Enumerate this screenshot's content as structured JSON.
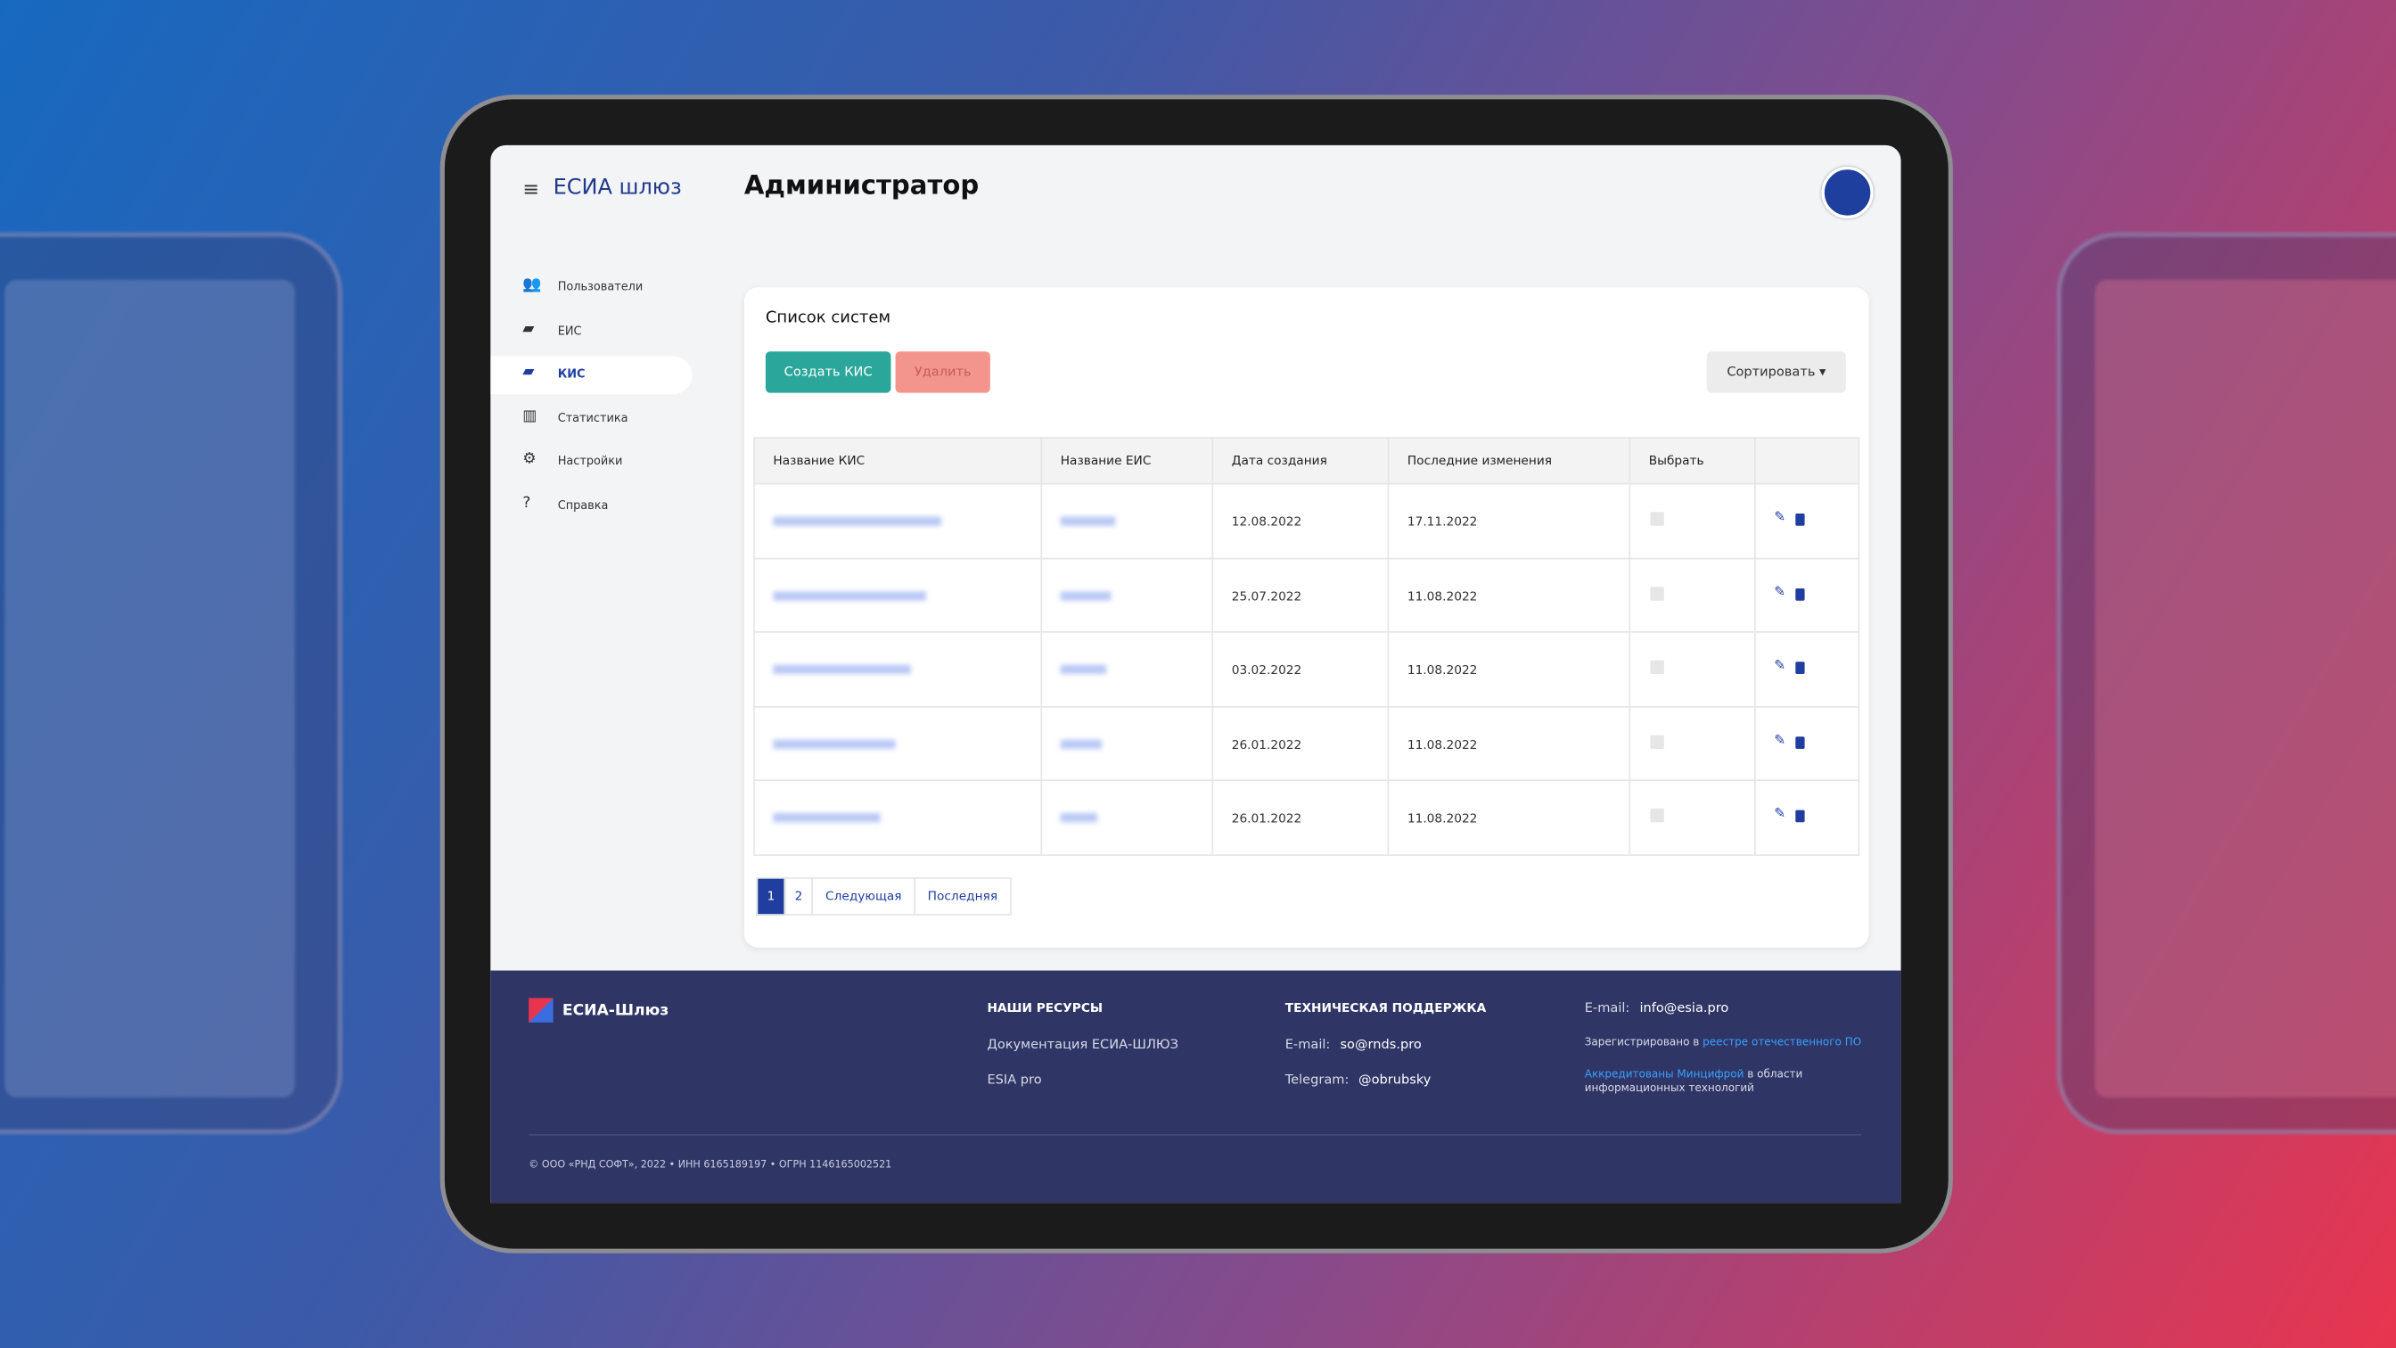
{
  "header": {
    "brand": "ЕСИА шлюз",
    "title": "Администратор"
  },
  "sidebar": {
    "items": [
      {
        "label": "Пользователи"
      },
      {
        "label": "ЕИС"
      },
      {
        "label": "КИС",
        "active": true
      },
      {
        "label": "Статистика"
      },
      {
        "label": "Настройки"
      },
      {
        "label": "Справка"
      }
    ]
  },
  "panel": {
    "title": "Список систем",
    "create": "Создать КИС",
    "delete": "Удалить",
    "sort": "Сортировать"
  },
  "table": {
    "columns": [
      "Название КИС",
      "Название ЕИС",
      "Дата создания",
      "Последние изменения",
      "Выбрать"
    ],
    "rows": [
      [
        "12.08.2022",
        "17.11.2022"
      ],
      [
        "25.07.2022",
        "11.08.2022"
      ],
      [
        "03.02.2022",
        "11.08.2022"
      ],
      [
        "26.01.2022",
        "11.08.2022"
      ],
      [
        "26.01.2022",
        "11.08.2022"
      ]
    ]
  },
  "pagination": [
    "1",
    "2",
    "Следующая",
    "Последняя"
  ],
  "footer": {
    "brand": "ЕСИА-Шлюз",
    "resources": {
      "title": "НАШИ РЕСУРСЫ",
      "links": [
        "Документация ЕСИА-ШЛЮЗ",
        "ESIA pro"
      ]
    },
    "support": {
      "title": "ТЕХНИЧЕСКАЯ ПОДДЕРЖКА",
      "email_label": "E-mail:",
      "email": "so@rnds.pro",
      "telegram_label": "Telegram:",
      "telegram": "@obrubsky"
    },
    "contact": {
      "email_label": "E-mail:",
      "email": "info@esia.pro",
      "registered": "Зарегистрировано в",
      "registered_link": "реестре отечественного ПО",
      "accredited_link": "Аккредитованы Минцифрой",
      "accredited": "в области информационных технологий"
    },
    "copyright": "© ООО «РНД СОФТ», 2022 • ИНН 6165189197 • ОГРН 1146165002521"
  }
}
